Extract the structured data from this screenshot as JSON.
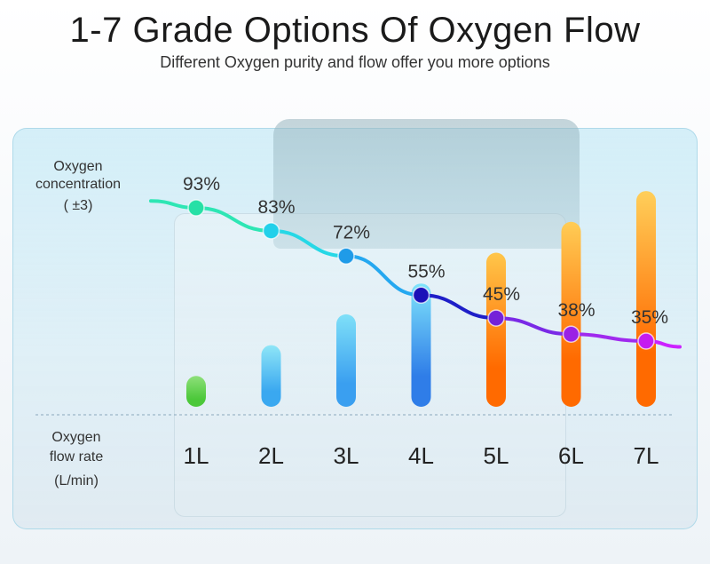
{
  "header": {
    "title": "1-7 Grade Options Of Oxygen Flow",
    "subtitle": "Different Oxygen purity and flow offer you more options"
  },
  "labels": {
    "concentration_line1": "Oxygen",
    "concentration_line2": "concentration",
    "concentration_line3": "( ±3)",
    "flow_line1": "Oxygen",
    "flow_line2": "flow rate",
    "flow_line3": "(L/min)"
  },
  "chart_data": {
    "type": "bar",
    "categories": [
      "1L",
      "2L",
      "3L",
      "4L",
      "5L",
      "6L",
      "7L"
    ],
    "series": [
      {
        "values": [
          1,
          2,
          3,
          4,
          5,
          6,
          7
        ]
      },
      {
        "values": [
          93,
          83,
          72,
          55,
          45,
          38,
          35
        ],
        "data_labels": [
          "93%",
          "83%",
          "72%",
          "55%",
          "45%",
          "38%",
          "35%"
        ]
      }
    ],
    "bar_colors": [
      [
        "#8ee07a",
        "#4cc83a"
      ],
      [
        "#8fe6f7",
        "#3aa8f0"
      ],
      [
        "#7fe0f8",
        "#3a9ff0"
      ],
      [
        "#7fe4fb",
        "#2f7de8"
      ],
      [
        "#ffc64a",
        "#ff6a00"
      ],
      [
        "#ffcc55",
        "#ff6a00"
      ],
      [
        "#ffcf5a",
        "#ff6a00"
      ]
    ],
    "line_colors": [
      "#2ee6b4",
      "#26d8e6",
      "#25a8f0",
      "#1e1ec8",
      "#7a2ae6",
      "#a02aee",
      "#cc22ff"
    ],
    "marker_colors": [
      "#27e0a6",
      "#22d0ea",
      "#1f9be8",
      "#1a10b8",
      "#7522d8",
      "#9a22e4",
      "#c51cf0"
    ]
  }
}
